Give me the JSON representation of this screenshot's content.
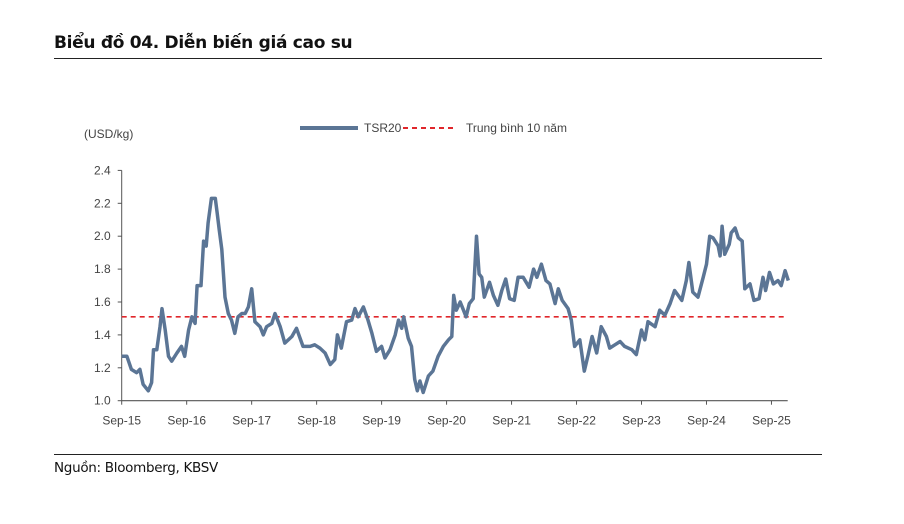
{
  "header": {
    "title": "Biểu đồ 04. Diễn biến giá cao su"
  },
  "footer": {
    "source": "Nguồn: Bloomberg, KBSV"
  },
  "colors": {
    "series": "#5b7595",
    "mean": "#e0262b",
    "axis": "#555555"
  },
  "chart_data": {
    "type": "line",
    "title": "Biểu đồ 04. Diễn biến giá cao su",
    "ylabel": "(USD/kg)",
    "xlabel": "",
    "ylim": [
      1.0,
      2.4
    ],
    "yticks": [
      "1.0",
      "1.2",
      "1.4",
      "1.6",
      "1.8",
      "2.0",
      "2.2",
      "2.4"
    ],
    "ytick_values": [
      1.0,
      1.2,
      1.4,
      1.6,
      1.8,
      2.0,
      2.2,
      2.4
    ],
    "x_unit": "years since Sep-15",
    "xlim": [
      0,
      10.25
    ],
    "xticks": [
      "Sep-15",
      "Sep-16",
      "Sep-17",
      "Sep-18",
      "Sep-19",
      "Sep-20",
      "Sep-21",
      "Sep-22",
      "Sep-23",
      "Sep-24",
      "Sep-25"
    ],
    "xtick_values": [
      0,
      1,
      2,
      3,
      4,
      5,
      6,
      7,
      8,
      9,
      10
    ],
    "grid": false,
    "legend_position": "top-center",
    "legend": [
      "TSR20",
      "Trung bình 10 năm"
    ],
    "mean_value": 1.51,
    "series": [
      {
        "name": "TSR20",
        "points": [
          [
            0,
            1.27
          ],
          [
            0.08,
            1.27
          ],
          [
            0.15,
            1.19
          ],
          [
            0.23,
            1.17
          ],
          [
            0.28,
            1.19
          ],
          [
            0.33,
            1.1
          ],
          [
            0.41,
            1.06
          ],
          [
            0.46,
            1.11
          ],
          [
            0.49,
            1.31
          ],
          [
            0.54,
            1.31
          ],
          [
            0.59,
            1.45
          ],
          [
            0.62,
            1.56
          ],
          [
            0.67,
            1.43
          ],
          [
            0.72,
            1.27
          ],
          [
            0.77,
            1.24
          ],
          [
            0.85,
            1.29
          ],
          [
            0.92,
            1.33
          ],
          [
            0.97,
            1.27
          ],
          [
            1.03,
            1.43
          ],
          [
            1.08,
            1.51
          ],
          [
            1.13,
            1.47
          ],
          [
            1.16,
            1.7
          ],
          [
            1.22,
            1.7
          ],
          [
            1.26,
            1.97
          ],
          [
            1.3,
            1.94
          ],
          [
            1.33,
            2.08
          ],
          [
            1.38,
            2.23
          ],
          [
            1.44,
            2.23
          ],
          [
            1.47,
            2.14
          ],
          [
            1.5,
            2.04
          ],
          [
            1.54,
            1.92
          ],
          [
            1.59,
            1.63
          ],
          [
            1.64,
            1.53
          ],
          [
            1.69,
            1.49
          ],
          [
            1.74,
            1.41
          ],
          [
            1.79,
            1.51
          ],
          [
            1.85,
            1.53
          ],
          [
            1.9,
            1.53
          ],
          [
            1.95,
            1.57
          ],
          [
            2.0,
            1.68
          ],
          [
            2.05,
            1.48
          ],
          [
            2.13,
            1.45
          ],
          [
            2.18,
            1.4
          ],
          [
            2.23,
            1.45
          ],
          [
            2.31,
            1.47
          ],
          [
            2.36,
            1.53
          ],
          [
            2.44,
            1.45
          ],
          [
            2.51,
            1.35
          ],
          [
            2.62,
            1.39
          ],
          [
            2.69,
            1.44
          ],
          [
            2.79,
            1.33
          ],
          [
            2.9,
            1.33
          ],
          [
            2.97,
            1.34
          ],
          [
            3.05,
            1.32
          ],
          [
            3.13,
            1.29
          ],
          [
            3.21,
            1.22
          ],
          [
            3.28,
            1.25
          ],
          [
            3.32,
            1.4
          ],
          [
            3.38,
            1.32
          ],
          [
            3.46,
            1.48
          ],
          [
            3.54,
            1.49
          ],
          [
            3.59,
            1.56
          ],
          [
            3.64,
            1.51
          ],
          [
            3.72,
            1.57
          ],
          [
            3.79,
            1.49
          ],
          [
            3.85,
            1.41
          ],
          [
            3.92,
            1.3
          ],
          [
            4.0,
            1.33
          ],
          [
            4.05,
            1.26
          ],
          [
            4.13,
            1.31
          ],
          [
            4.21,
            1.4
          ],
          [
            4.26,
            1.49
          ],
          [
            4.31,
            1.44
          ],
          [
            4.34,
            1.51
          ],
          [
            4.41,
            1.38
          ],
          [
            4.46,
            1.33
          ],
          [
            4.51,
            1.13
          ],
          [
            4.55,
            1.06
          ],
          [
            4.59,
            1.12
          ],
          [
            4.64,
            1.05
          ],
          [
            4.72,
            1.15
          ],
          [
            4.79,
            1.18
          ],
          [
            4.87,
            1.27
          ],
          [
            4.95,
            1.33
          ],
          [
            5.03,
            1.37
          ],
          [
            5.08,
            1.39
          ],
          [
            5.11,
            1.64
          ],
          [
            5.15,
            1.55
          ],
          [
            5.21,
            1.6
          ],
          [
            5.26,
            1.55
          ],
          [
            5.3,
            1.51
          ],
          [
            5.35,
            1.59
          ],
          [
            5.41,
            1.62
          ],
          [
            5.46,
            2.0
          ],
          [
            5.5,
            1.77
          ],
          [
            5.54,
            1.75
          ],
          [
            5.58,
            1.63
          ],
          [
            5.66,
            1.72
          ],
          [
            5.72,
            1.64
          ],
          [
            5.79,
            1.58
          ],
          [
            5.85,
            1.67
          ],
          [
            5.91,
            1.74
          ],
          [
            5.97,
            1.62
          ],
          [
            6.04,
            1.61
          ],
          [
            6.1,
            1.75
          ],
          [
            6.18,
            1.75
          ],
          [
            6.27,
            1.69
          ],
          [
            6.34,
            1.8
          ],
          [
            6.39,
            1.75
          ],
          [
            6.46,
            1.83
          ],
          [
            6.53,
            1.73
          ],
          [
            6.59,
            1.71
          ],
          [
            6.67,
            1.59
          ],
          [
            6.72,
            1.68
          ],
          [
            6.78,
            1.61
          ],
          [
            6.87,
            1.56
          ],
          [
            6.92,
            1.49
          ],
          [
            6.97,
            1.33
          ],
          [
            7.05,
            1.37
          ],
          [
            7.12,
            1.18
          ],
          [
            7.18,
            1.28
          ],
          [
            7.24,
            1.39
          ],
          [
            7.31,
            1.29
          ],
          [
            7.38,
            1.45
          ],
          [
            7.46,
            1.39
          ],
          [
            7.51,
            1.32
          ],
          [
            7.59,
            1.34
          ],
          [
            7.67,
            1.36
          ],
          [
            7.74,
            1.33
          ],
          [
            7.85,
            1.31
          ],
          [
            7.92,
            1.28
          ],
          [
            8.0,
            1.43
          ],
          [
            8.05,
            1.37
          ],
          [
            8.1,
            1.48
          ],
          [
            8.21,
            1.45
          ],
          [
            8.28,
            1.55
          ],
          [
            8.36,
            1.52
          ],
          [
            8.44,
            1.59
          ],
          [
            8.51,
            1.67
          ],
          [
            8.62,
            1.61
          ],
          [
            8.69,
            1.73
          ],
          [
            8.73,
            1.84
          ],
          [
            8.79,
            1.66
          ],
          [
            8.87,
            1.63
          ],
          [
            8.95,
            1.75
          ],
          [
            9.0,
            1.83
          ],
          [
            9.05,
            2.0
          ],
          [
            9.1,
            1.99
          ],
          [
            9.18,
            1.94
          ],
          [
            9.21,
            1.88
          ],
          [
            9.24,
            2.06
          ],
          [
            9.28,
            1.89
          ],
          [
            9.35,
            1.95
          ],
          [
            9.38,
            2.02
          ],
          [
            9.44,
            2.05
          ],
          [
            9.49,
            1.99
          ],
          [
            9.55,
            1.97
          ],
          [
            9.59,
            1.68
          ],
          [
            9.67,
            1.71
          ],
          [
            9.73,
            1.61
          ],
          [
            9.81,
            1.62
          ],
          [
            9.87,
            1.75
          ],
          [
            9.91,
            1.67
          ],
          [
            9.97,
            1.78
          ],
          [
            10.03,
            1.71
          ],
          [
            10.1,
            1.73
          ],
          [
            10.15,
            1.7
          ],
          [
            10.21,
            1.79
          ],
          [
            10.26,
            1.73
          ]
        ]
      }
    ]
  }
}
